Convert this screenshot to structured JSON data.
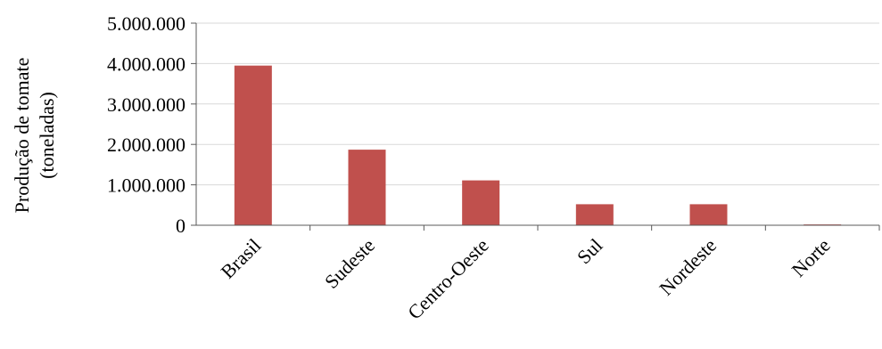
{
  "chart_data": {
    "type": "bar",
    "categories": [
      "Brasil",
      "Sudeste",
      "Centro-Oeste",
      "Sul",
      "Nordeste",
      "Norte"
    ],
    "values": [
      3950000,
      1870000,
      1110000,
      520000,
      520000,
      20000
    ],
    "title": "",
    "xlabel": "",
    "ylabel": [
      "Produção de tomate",
      "(toneladas)"
    ],
    "ylim": [
      0,
      5000000
    ],
    "yticks": [
      0,
      1000000,
      2000000,
      3000000,
      4000000,
      5000000
    ],
    "ytick_labels": [
      "0",
      "1.000.000",
      "2.000.000",
      "3.000.000",
      "4.000.000",
      "5.000.000"
    ],
    "grid": true,
    "bar_color": "#c0504d"
  }
}
